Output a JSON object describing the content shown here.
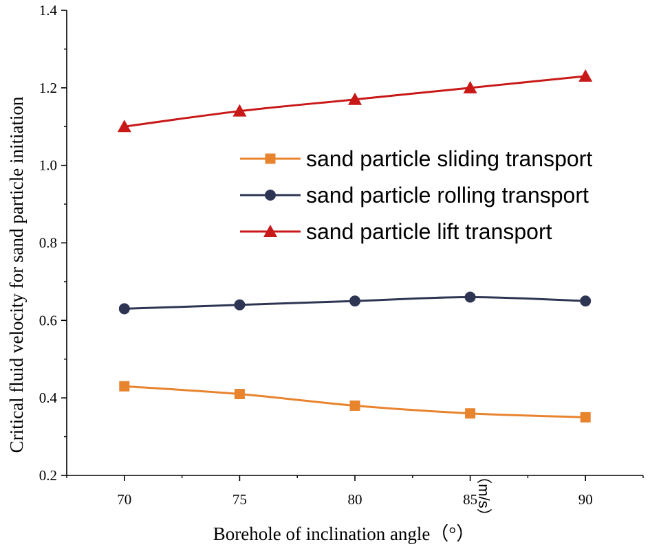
{
  "chart_data": {
    "type": "line",
    "x": [
      70,
      75,
      80,
      85,
      90
    ],
    "xlabel": "Borehole of inclination angle（°）",
    "ylabel": "Critical fluid velocity for sand particle initiation",
    "yunit": "（m/s）",
    "xlim": [
      67.5,
      92.5
    ],
    "ylim": [
      0.2,
      1.4
    ],
    "xticks": [
      70,
      75,
      80,
      85,
      90
    ],
    "yticks": [
      "0.2",
      "0.4",
      "0.6",
      "0.8",
      "1.0",
      "1.2",
      "1.4"
    ],
    "grid": false,
    "legend_position": "center-right",
    "series": [
      {
        "name": "sand particle sliding transport",
        "values": [
          0.43,
          0.41,
          0.38,
          0.36,
          0.35
        ],
        "color": "#E8832E",
        "marker": "square"
      },
      {
        "name": "sand particle rolling transport",
        "values": [
          0.63,
          0.64,
          0.65,
          0.66,
          0.65
        ],
        "color": "#2E3553",
        "marker": "circle"
      },
      {
        "name": "sand particle lift transport",
        "values": [
          1.1,
          1.14,
          1.17,
          1.2,
          1.23
        ],
        "color": "#C81818",
        "marker": "triangle"
      }
    ]
  }
}
